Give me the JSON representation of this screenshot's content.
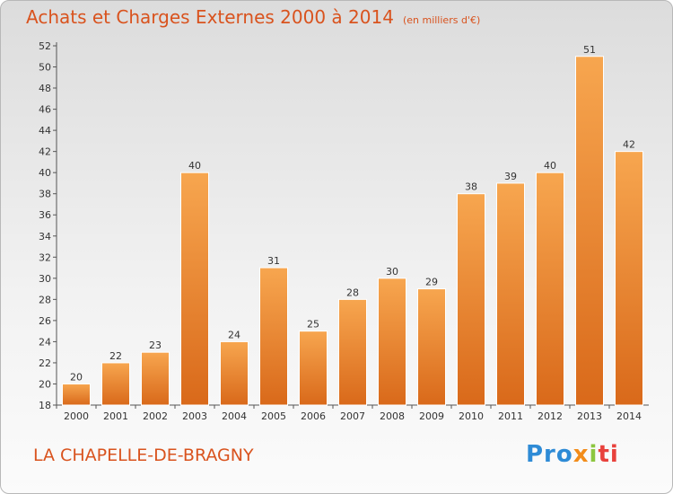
{
  "header": {
    "title": "Achats et Charges Externes 2000 à 2014",
    "subtitle": "(en milliers d'€)"
  },
  "footer": {
    "place": "LA CHAPELLE-DE-BRAGNY",
    "logo": [
      "Pro",
      "x",
      "i",
      "ti"
    ]
  },
  "colors": {
    "bar_light": "#f7a64f",
    "bar_dark": "#d9691a",
    "title": "#d9531e"
  },
  "chart_data": {
    "type": "bar",
    "title": "Achats et Charges Externes 2000 à 2014",
    "subtitle": "(en milliers d'€)",
    "categories": [
      "2000",
      "2001",
      "2002",
      "2003",
      "2004",
      "2005",
      "2006",
      "2007",
      "2008",
      "2009",
      "2010",
      "2011",
      "2012",
      "2013",
      "2014"
    ],
    "values": [
      20,
      22,
      23,
      40,
      24,
      31,
      25,
      28,
      30,
      29,
      38,
      39,
      40,
      51,
      42
    ],
    "ylim": [
      18,
      52
    ],
    "yticks": [
      18,
      20,
      22,
      24,
      26,
      28,
      30,
      32,
      34,
      36,
      38,
      40,
      42,
      44,
      46,
      48,
      50,
      52
    ],
    "grid": false,
    "data_labels": true
  }
}
